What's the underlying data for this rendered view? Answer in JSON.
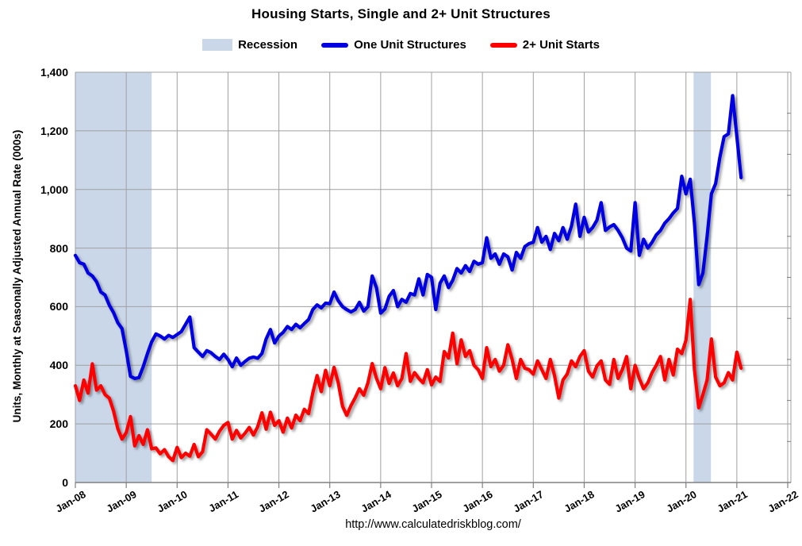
{
  "title": "Housing Starts, Single and 2+ Unit Structures",
  "legend_items": [
    {
      "id": "recession",
      "label": "Recession"
    },
    {
      "id": "one-unit",
      "label": "One Unit Structures"
    },
    {
      "id": "two-plus",
      "label": "2+ Unit Starts"
    }
  ],
  "footer": {
    "url": "http://www.calculatedriskblog.com/"
  },
  "colors": {
    "one_unit_line": "#0000e0",
    "two_plus_line": "#fe0000",
    "recession_band": "#c9d7e9",
    "gridline": "#a0a0a0",
    "axis": "#808080",
    "text": "#000000"
  },
  "chart_data": {
    "type": "line",
    "title": "Housing Starts, Single and 2+ Unit Structures",
    "xlabel": "",
    "ylabel": "Units, Monthly at Seasonally Adjusted Annual Rate (000s)",
    "ylim": [
      0,
      1400
    ],
    "y_tick_step": 200,
    "y_tick_labels": [
      "0",
      "200",
      "400",
      "600",
      "800",
      "1,000",
      "1,200",
      "1,400"
    ],
    "grid": true,
    "legend_position": "top",
    "x_start": "2008-01",
    "x_end": "2021-02",
    "x_tick_labels": [
      "Jan-08",
      "Jan-09",
      "Jan-10",
      "Jan-11",
      "Jan-12",
      "Jan-13",
      "Jan-14",
      "Jan-15",
      "Jan-16",
      "Jan-17",
      "Jan-18",
      "Jan-19",
      "Jan-20",
      "Jan-21",
      "Jan-22"
    ],
    "x_axis_span_months": 168.75,
    "recession_bands_month_index": [
      {
        "start": 0,
        "end": 18,
        "note": "Jan 2008 - Jun 2009"
      },
      {
        "start": 145.8,
        "end": 149.9,
        "note": "2020 COVID recession"
      }
    ],
    "series": [
      {
        "name": "One Unit Structures",
        "color": "#0000e0",
        "values": [
          775,
          750,
          745,
          715,
          705,
          685,
          650,
          640,
          605,
          580,
          545,
          525,
          450,
          362,
          355,
          358,
          395,
          440,
          480,
          507,
          500,
          490,
          502,
          495,
          505,
          515,
          540,
          565,
          460,
          445,
          430,
          450,
          443,
          430,
          420,
          438,
          420,
          395,
          425,
          400,
          413,
          424,
          428,
          424,
          440,
          490,
          522,
          476,
          500,
          512,
          532,
          522,
          540,
          528,
          542,
          556,
          590,
          606,
          596,
          612,
          610,
          650,
          620,
          600,
          590,
          582,
          590,
          615,
          585,
          600,
          705,
          665,
          578,
          592,
          635,
          655,
          600,
          625,
          615,
          645,
          640,
          695,
          640,
          710,
          700,
          590,
          680,
          705,
          665,
          690,
          730,
          715,
          740,
          720,
          755,
          745,
          750,
          835,
          765,
          780,
          745,
          780,
          770,
          725,
          785,
          765,
          805,
          815,
          820,
          870,
          820,
          840,
          795,
          850,
          825,
          870,
          830,
          875,
          950,
          840,
          905,
          855,
          870,
          895,
          955,
          860,
          872,
          880,
          860,
          835,
          800,
          790,
          955,
          775,
          830,
          800,
          820,
          845,
          860,
          885,
          900,
          920,
          935,
          1045,
          985,
          1035,
          885,
          675,
          715,
          840,
          985,
          1020,
          1110,
          1180,
          1190,
          1320,
          1180,
          1040
        ]
      },
      {
        "name": "2+ Unit Starts",
        "color": "#fe0000",
        "values": [
          330,
          280,
          350,
          305,
          405,
          315,
          330,
          300,
          288,
          244,
          184,
          148,
          170,
          225,
          125,
          160,
          130,
          180,
          115,
          118,
          98,
          112,
          88,
          75,
          120,
          85,
          100,
          90,
          130,
          88,
          105,
          180,
          165,
          148,
          175,
          195,
          205,
          148,
          178,
          152,
          168,
          188,
          162,
          190,
          238,
          182,
          240,
          195,
          211,
          172,
          220,
          186,
          230,
          211,
          250,
          235,
          306,
          365,
          310,
          383,
          330,
          393,
          340,
          260,
          229,
          262,
          289,
          320,
          298,
          340,
          406,
          356,
          320,
          392,
          338,
          374,
          330,
          355,
          440,
          345,
          375,
          355,
          340,
          385,
          333,
          360,
          345,
          447,
          425,
          510,
          405,
          487,
          430,
          450,
          400,
          385,
          355,
          460,
          395,
          420,
          380,
          400,
          470,
          420,
          355,
          420,
          390,
          385,
          370,
          415,
          385,
          355,
          420,
          365,
          288,
          350,
          370,
          415,
          395,
          430,
          450,
          380,
          360,
          398,
          415,
          350,
          335,
          420,
          355,
          385,
          430,
          320,
          400,
          355,
          320,
          340,
          375,
          400,
          430,
          350,
          420,
          367,
          455,
          440,
          485,
          625,
          385,
          255,
          300,
          350,
          490,
          360,
          330,
          340,
          375,
          350,
          445,
          390
        ]
      }
    ]
  }
}
